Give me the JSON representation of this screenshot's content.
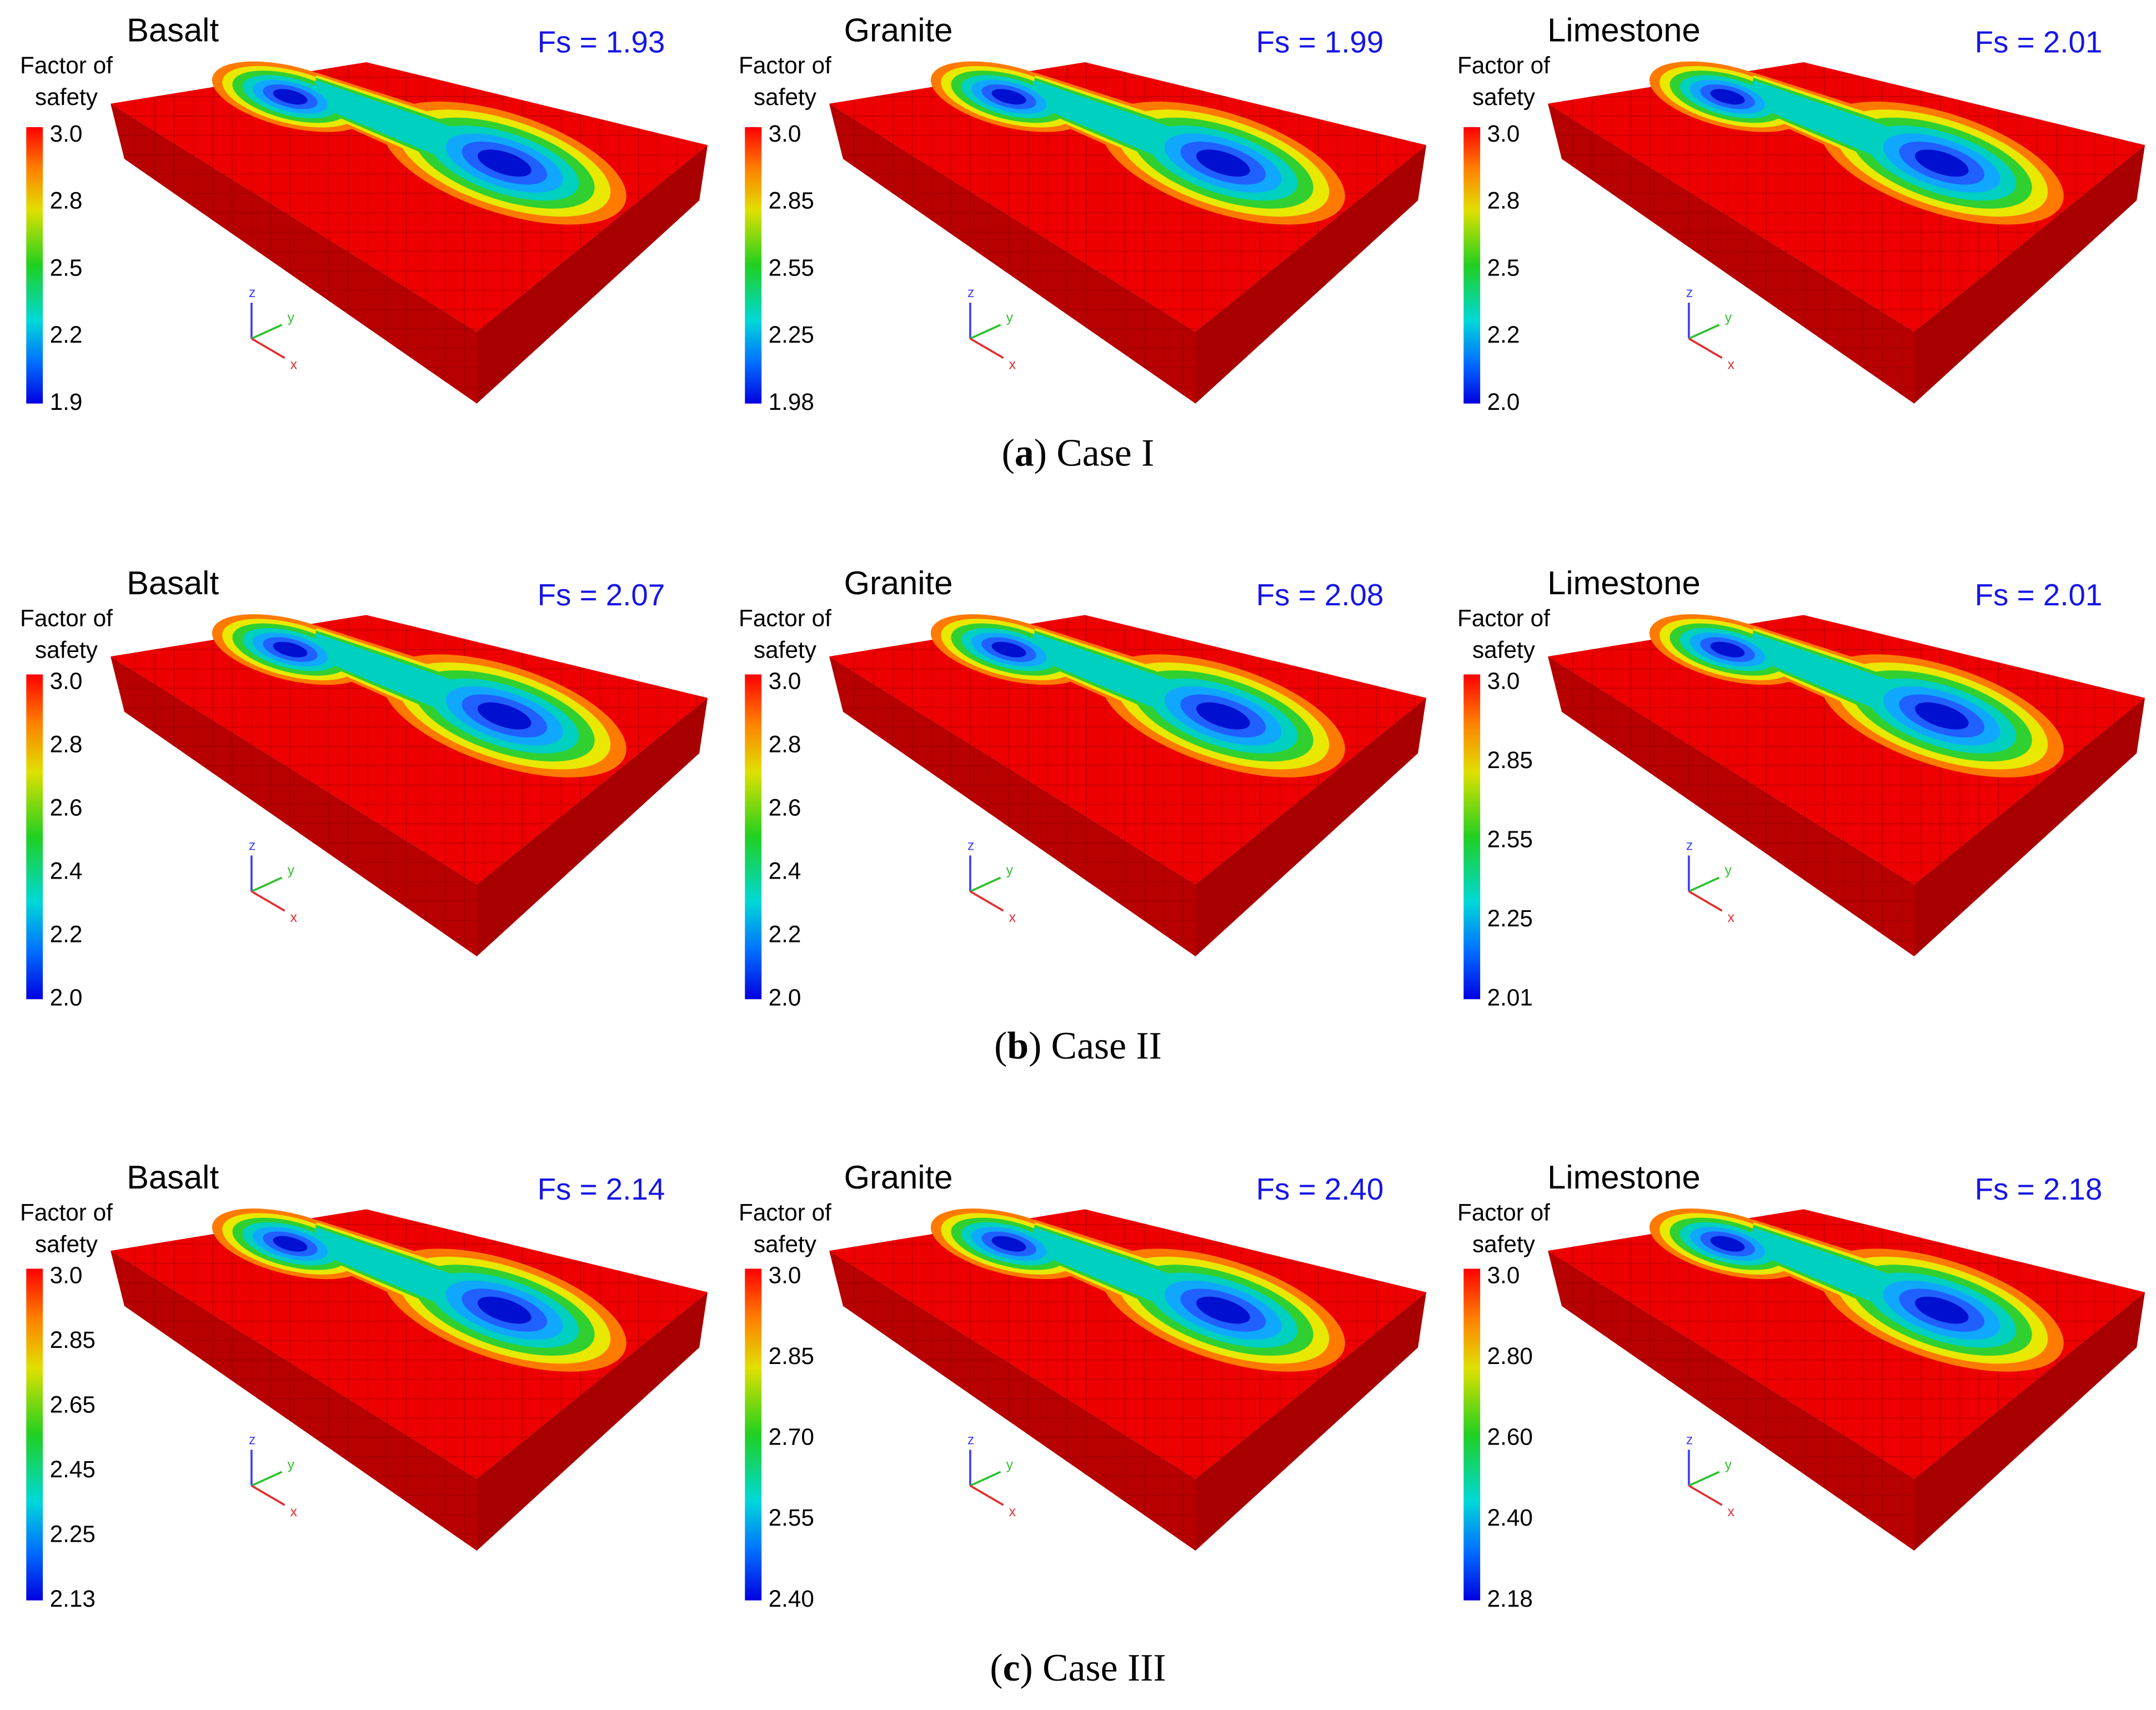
{
  "triad_labels": [
    "z",
    "y",
    "x"
  ],
  "cases": [
    {
      "caption": {
        "open": "(",
        "letter": "a",
        "rest": ") Case I"
      },
      "panels": [
        {
          "material": "Basalt",
          "fs": "Fs = 1.93",
          "legend_title": [
            "Factor of",
            "safety"
          ],
          "ticks": [
            "3.0",
            "2.8",
            "2.5",
            "2.2",
            "1.9"
          ]
        },
        {
          "material": "Granite",
          "fs": "Fs = 1.99",
          "legend_title": [
            "Factor of",
            "safety"
          ],
          "ticks": [
            "3.0",
            "2.85",
            "2.55",
            "2.25",
            "1.98"
          ]
        },
        {
          "material": "Limestone",
          "fs": "Fs = 2.01",
          "legend_title": [
            "Factor of",
            "safety"
          ],
          "ticks": [
            "3.0",
            "2.8",
            "2.5",
            "2.2",
            "2.0"
          ]
        }
      ]
    },
    {
      "caption": {
        "open": "(",
        "letter": "b",
        "rest": ") Case II"
      },
      "panels": [
        {
          "material": "Basalt",
          "fs": "Fs = 2.07",
          "legend_title": [
            "Factor of",
            "safety"
          ],
          "ticks": [
            "3.0",
            "2.8",
            "2.6",
            "2.4",
            "2.2",
            "2.0"
          ]
        },
        {
          "material": "Granite",
          "fs": "Fs = 2.08",
          "legend_title": [
            "Factor of",
            "safety"
          ],
          "ticks": [
            "3.0",
            "2.8",
            "2.6",
            "2.4",
            "2.2",
            "2.0"
          ]
        },
        {
          "material": "Limestone",
          "fs": "Fs = 2.01",
          "legend_title": [
            "Factor of",
            "safety"
          ],
          "ticks": [
            "3.0",
            "2.85",
            "2.55",
            "2.25",
            "2.01"
          ]
        }
      ]
    },
    {
      "caption": {
        "open": "(",
        "letter": "c",
        "rest": ") Case III"
      },
      "panels": [
        {
          "material": "Basalt",
          "fs": "Fs = 2.14",
          "legend_title": [
            "Factor of",
            "safety"
          ],
          "ticks": [
            "3.0",
            "2.85",
            "2.65",
            "2.45",
            "2.25",
            "2.13"
          ]
        },
        {
          "material": "Granite",
          "fs": "Fs = 2.40",
          "legend_title": [
            "Factor of",
            "safety"
          ],
          "ticks": [
            "3.0",
            "2.85",
            "2.70",
            "2.55",
            "2.40"
          ]
        },
        {
          "material": "Limestone",
          "fs": "Fs = 2.18",
          "legend_title": [
            "Factor of",
            "safety"
          ],
          "ticks": [
            "3.0",
            "2.80",
            "2.60",
            "2.40",
            "2.18"
          ]
        }
      ]
    }
  ]
}
